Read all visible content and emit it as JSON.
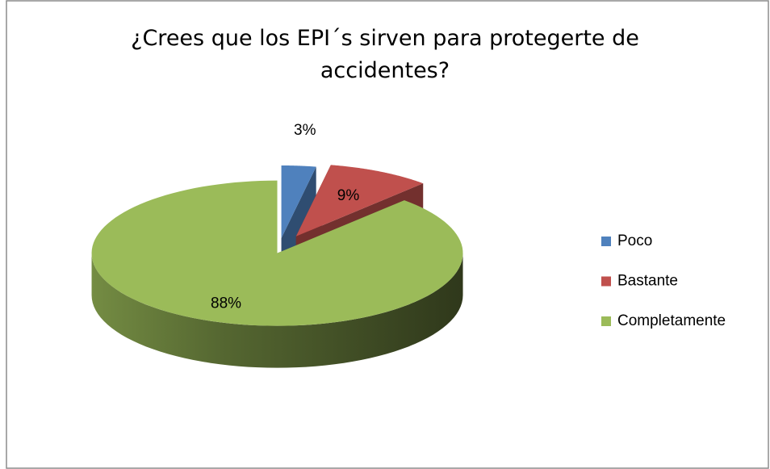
{
  "chart_data": {
    "type": "pie",
    "title": "¿Crees que los EPI´s sirven para protegerte de accidentes?",
    "categories": [
      "Poco",
      "Bastante",
      "Completamente"
    ],
    "values": [
      3,
      9,
      88
    ],
    "value_labels": [
      "3%",
      "9%",
      "88%"
    ],
    "colors": [
      "#4f81bd",
      "#c0504d",
      "#9bbb59"
    ],
    "legend": "right"
  }
}
